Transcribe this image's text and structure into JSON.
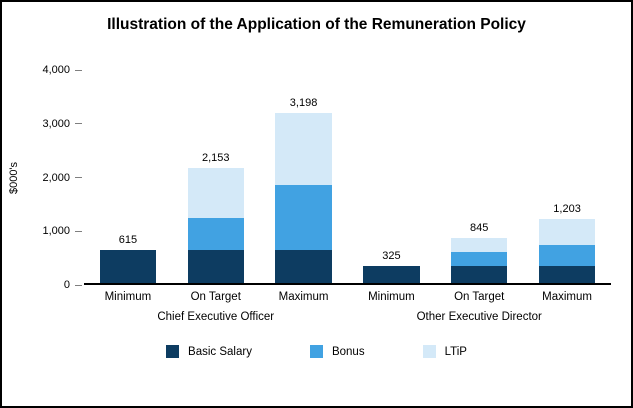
{
  "chart": {
    "title": "Illustration of the Application of the Remuneration Policy",
    "ylabel": "$000's"
  },
  "chart_data": {
    "type": "bar",
    "stacked": true,
    "title": "Illustration of the Application of the Remuneration Policy",
    "ylabel": "$000's",
    "xlabel": "",
    "ylim": [
      0,
      4000
    ],
    "yticks": [
      "0",
      "1,000",
      "2,000",
      "3,000",
      "4,000"
    ],
    "grid": false,
    "legend_position": "bottom",
    "categories": [
      "Minimum",
      "On Target",
      "Maximum",
      "Minimum",
      "On Target",
      "Maximum"
    ],
    "groups": [
      {
        "label": "Chief Executive Officer",
        "span": 3
      },
      {
        "label": "Other Executive Director",
        "span": 3
      }
    ],
    "series": [
      {
        "name": "Basic Salary",
        "color": "#0d3c61",
        "values": [
          615,
          615,
          615,
          325,
          325,
          325
        ]
      },
      {
        "name": "Bonus",
        "color": "#41a2e2",
        "values": [
          0,
          615,
          1230,
          0,
          260,
          390
        ]
      },
      {
        "name": "LTiP",
        "color": "#d4e9f8",
        "values": [
          0,
          923,
          1353,
          0,
          260,
          488
        ]
      }
    ],
    "totals": [
      615,
      2153,
      3198,
      325,
      845,
      1203
    ],
    "total_labels": [
      "615",
      "2,153",
      "3,198",
      "325",
      "845",
      "1,203"
    ]
  }
}
